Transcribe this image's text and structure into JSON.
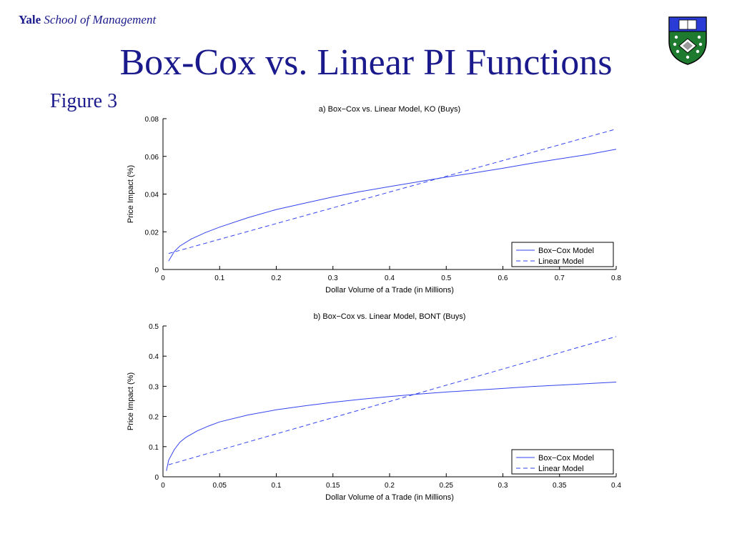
{
  "header": {
    "brand_bold": "Yale",
    "brand_italic": "School of Management"
  },
  "slide": {
    "title": "Box-Cox vs. Linear PI Functions",
    "figure_label": "Figure 3"
  },
  "crest": {
    "icon": "yale-shield-icon",
    "colors": {
      "blue": "#2a3bd6",
      "green": "#1e7a2e",
      "white": "#ffffff"
    }
  },
  "colors": {
    "title_text": "#1a1a8c",
    "series": "#3344ee"
  },
  "chart_data": [
    {
      "type": "line",
      "title": "a) Box−Cox vs. Linear Model, KO (Buys)",
      "xlabel": "Dollar Volume of a Trade (in Millions)",
      "ylabel": "Price Impact (%)",
      "xlim": [
        0,
        0.8
      ],
      "ylim": [
        0,
        0.08
      ],
      "xticks": [
        0,
        0.1,
        0.2,
        0.3,
        0.4,
        0.5,
        0.6,
        0.7,
        0.8
      ],
      "xtick_labels": [
        "0",
        "0.1",
        "0.2",
        "0.3",
        "0.4",
        "0.5",
        "0.6",
        "0.7",
        "0.8"
      ],
      "yticks": [
        0,
        0.02,
        0.04,
        0.06,
        0.08
      ],
      "ytick_labels": [
        "0",
        "0.02",
        "0.04",
        "0.06",
        "0.08"
      ],
      "legend_position": "bottom-right",
      "series": [
        {
          "name": "Box−Cox Model",
          "style": "solid",
          "x": [
            0.01,
            0.02,
            0.03,
            0.05,
            0.075,
            0.1,
            0.15,
            0.2,
            0.25,
            0.3,
            0.35,
            0.4,
            0.45,
            0.5,
            0.55,
            0.6,
            0.65,
            0.7,
            0.75,
            0.8
          ],
          "y": [
            0.0045,
            0.0095,
            0.0125,
            0.0162,
            0.0196,
            0.0225,
            0.0275,
            0.0318,
            0.0352,
            0.0385,
            0.0414,
            0.044,
            0.0465,
            0.049,
            0.0513,
            0.0537,
            0.0563,
            0.0587,
            0.061,
            0.0638
          ]
        },
        {
          "name": "Linear Model",
          "style": "dashed",
          "x": [
            0.01,
            0.8
          ],
          "y": [
            0.0085,
            0.0745
          ]
        }
      ]
    },
    {
      "type": "line",
      "title": "b) Box−Cox vs. Linear Model, BONT (Buys)",
      "xlabel": "Dollar Volume of a Trade (in Millions)",
      "ylabel": "Price Impact (%)",
      "xlim": [
        0,
        0.4
      ],
      "ylim": [
        0,
        0.5
      ],
      "xticks": [
        0,
        0.05,
        0.1,
        0.15,
        0.2,
        0.25,
        0.3,
        0.35,
        0.4
      ],
      "xtick_labels": [
        "0",
        "0.05",
        "0.1",
        "0.15",
        "0.2",
        "0.25",
        "0.3",
        "0.35",
        "0.4"
      ],
      "yticks": [
        0,
        0.1,
        0.2,
        0.3,
        0.4,
        0.5
      ],
      "ytick_labels": [
        "0",
        "0.1",
        "0.2",
        "0.3",
        "0.4",
        "0.5"
      ],
      "legend_position": "bottom-right",
      "series": [
        {
          "name": "Box−Cox Model",
          "style": "solid",
          "x": [
            0.003,
            0.005,
            0.01,
            0.015,
            0.02,
            0.03,
            0.04,
            0.05,
            0.075,
            0.1,
            0.125,
            0.15,
            0.175,
            0.2,
            0.225,
            0.25,
            0.275,
            0.3,
            0.325,
            0.35,
            0.375,
            0.4
          ],
          "y": [
            0.02,
            0.055,
            0.09,
            0.115,
            0.13,
            0.152,
            0.168,
            0.182,
            0.205,
            0.222,
            0.235,
            0.247,
            0.257,
            0.266,
            0.274,
            0.281,
            0.287,
            0.293,
            0.299,
            0.304,
            0.309,
            0.314
          ]
        },
        {
          "name": "Linear Model",
          "style": "dashed",
          "x": [
            0.005,
            0.4
          ],
          "y": [
            0.04,
            0.465
          ]
        }
      ]
    }
  ]
}
